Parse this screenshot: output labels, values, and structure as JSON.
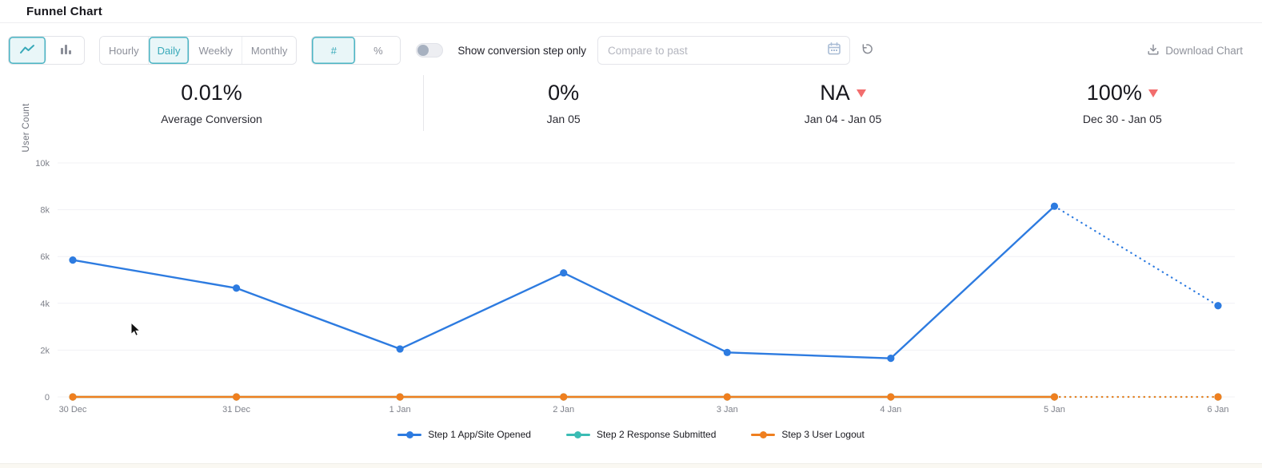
{
  "page": {
    "title": "Funnel Chart"
  },
  "toolbar": {
    "chart_type": [
      {
        "icon": "line-chart-icon",
        "active": true
      },
      {
        "icon": "bar-chart-icon",
        "active": false
      }
    ],
    "granularity": [
      {
        "label": "Hourly",
        "active": false
      },
      {
        "label": "Daily",
        "active": true
      },
      {
        "label": "Weekly",
        "active": false
      },
      {
        "label": "Monthly",
        "active": false
      }
    ],
    "value_mode": [
      {
        "label": "#",
        "active": true
      },
      {
        "label": "%",
        "active": false
      }
    ],
    "toggle": {
      "label": "Show conversion step only",
      "on": false
    },
    "compare_input": {
      "placeholder": "Compare to past",
      "value": "",
      "icon": "calendar-icon"
    },
    "reset_icon": "reset-icon",
    "download_label": "Download Chart",
    "download_icon": "download-icon"
  },
  "stats": [
    {
      "value": "0.01%",
      "label": "Average Conversion",
      "trend": null
    },
    {
      "value": "0%",
      "label": "Jan 05",
      "trend": null
    },
    {
      "value": "NA",
      "label": "Jan 04 - Jan 05",
      "trend": "down"
    },
    {
      "value": "100%",
      "label": "Dec 30 - Jan 05",
      "trend": "down"
    }
  ],
  "colors": {
    "accent_teal": "#4ab4c3",
    "accent_teal_bg": "#e9f6f8",
    "series_blue": "#2d7be0",
    "series_teal": "#3bbcb4",
    "series_orange": "#ef7f1f",
    "trend_down_red": "#f26d6d",
    "grid": "#f1f1f5",
    "axis_text": "#7e818a"
  },
  "chart_data": {
    "type": "line",
    "title": "",
    "xlabel": "",
    "ylabel": "User Count",
    "x": [
      "30 Dec",
      "31 Dec",
      "1 Jan",
      "2 Jan",
      "3 Jan",
      "4 Jan",
      "5 Jan",
      "6 Jan"
    ],
    "ylim": [
      0,
      10000
    ],
    "yticks": [
      {
        "value": 0,
        "label": "0"
      },
      {
        "value": 2000,
        "label": "2k"
      },
      {
        "value": 4000,
        "label": "4k"
      },
      {
        "value": 6000,
        "label": "6k"
      },
      {
        "value": 8000,
        "label": "8k"
      },
      {
        "value": 10000,
        "label": "10k"
      }
    ],
    "grid": true,
    "legend_position": "bottom",
    "note": "segment after dotted_from_index is rendered dotted (incomplete period projection)",
    "series": [
      {
        "name": "Step 1 App/Site Opened",
        "color": "#2d7be0",
        "values": [
          5850,
          4650,
          2050,
          5300,
          1900,
          1650,
          8150,
          3900
        ],
        "dotted_from_index": 6
      },
      {
        "name": "Step 2 Response Submitted",
        "color": "#3bbcb4",
        "values": [
          0,
          0,
          0,
          0,
          0,
          0,
          0,
          0
        ],
        "dotted_from_index": 6
      },
      {
        "name": "Step 3 User Logout",
        "color": "#ef7f1f",
        "values": [
          0,
          0,
          0,
          0,
          0,
          0,
          0,
          0
        ],
        "dotted_from_index": 6
      }
    ]
  }
}
